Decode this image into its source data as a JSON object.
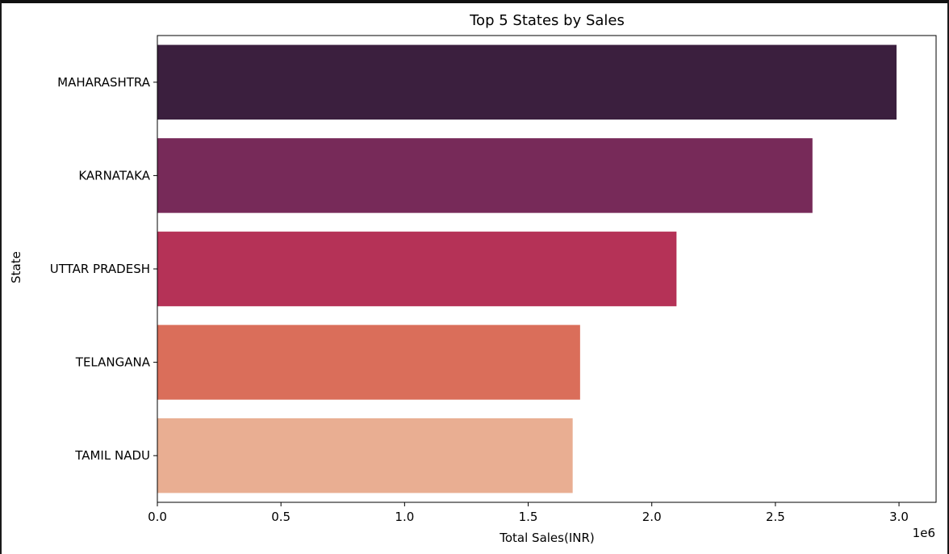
{
  "chart_data": {
    "type": "bar",
    "orientation": "horizontal",
    "title": "Top 5 States by Sales",
    "xlabel": "Total Sales(INR)",
    "ylabel": "State",
    "x_scale_label": "1e6",
    "xlim": [
      0,
      3.15
    ],
    "x_unit_multiplier": 1000000,
    "x_ticks": [
      0.0,
      0.5,
      1.0,
      1.5,
      2.0,
      2.5,
      3.0
    ],
    "x_tick_labels": [
      "0.0",
      "0.5",
      "1.0",
      "1.5",
      "2.0",
      "2.5",
      "3.0"
    ],
    "categories": [
      "MAHARASHTRA",
      "KARNATAKA",
      "UTTAR PRADESH",
      "TELANGANA",
      "TAMIL NADU"
    ],
    "values": [
      2.99,
      2.65,
      2.1,
      1.71,
      1.68
    ],
    "colors": [
      "#3b1f3e",
      "#772a59",
      "#b53257",
      "#da6e5a",
      "#e9ae92"
    ],
    "grid": false,
    "legend": "none"
  }
}
